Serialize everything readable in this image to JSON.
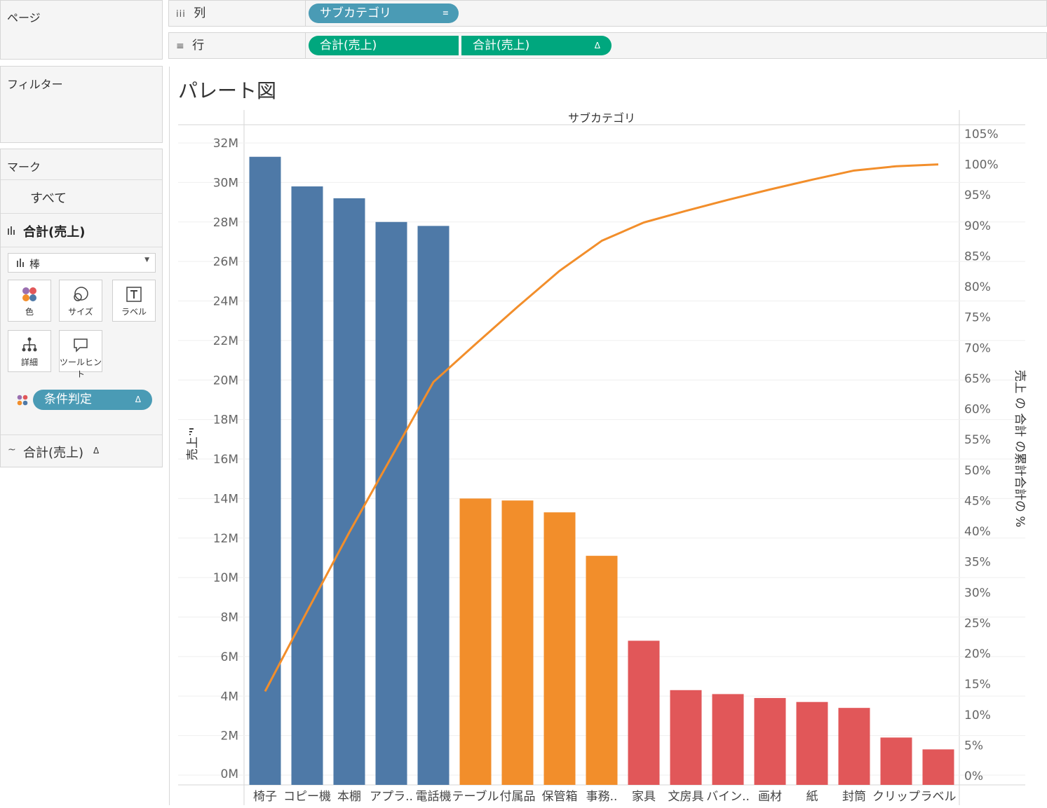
{
  "pages_panel": {
    "title": "ページ"
  },
  "filters_panel": {
    "title": "フィルター"
  },
  "columns_shelf": {
    "label": "列",
    "icon": "columns-icon",
    "pill": "サブカテゴリ"
  },
  "rows_shelf": {
    "label": "行",
    "icon": "rows-icon",
    "pills": [
      "合計(売上)",
      "合計(売上)"
    ],
    "pill2_delta": "Δ"
  },
  "marks_panel": {
    "title": "マーク",
    "all_label": "すべて",
    "measure_label": "合計(売上)",
    "mark_type": "棒",
    "buttons": [
      {
        "label": "色",
        "icon": "color-icon"
      },
      {
        "label": "サイズ",
        "icon": "size-icon"
      },
      {
        "label": "ラベル",
        "icon": "label-icon"
      },
      {
        "label": "詳細",
        "icon": "detail-icon"
      },
      {
        "label": "ツールヒント",
        "icon": "tooltip-icon"
      }
    ],
    "color_pill": "条件判定",
    "color_pill_delta": "Δ",
    "line_measure_label": "合計(売上)",
    "line_measure_delta": "Δ"
  },
  "colors": {
    "blue": "#4e79a7",
    "orange": "#f28e2b",
    "red": "#e15759",
    "line": "#f28e2b",
    "pill_dim": "#4a9bb5",
    "pill_measure": "#00a77e"
  },
  "chart_data": {
    "type": "bar",
    "title": "パレート図",
    "column_header": "サブカテゴリ",
    "categories": [
      "椅子",
      "コピー機",
      "本棚",
      "アプラ..",
      "電話機",
      "テーブル",
      "付属品",
      "保管箱",
      "事務..",
      "家具",
      "文房具",
      "バイン..",
      "画材",
      "紙",
      "封筒",
      "クリップ",
      "ラベル"
    ],
    "values": [
      31.3,
      29.8,
      29.2,
      28.0,
      27.8,
      14.0,
      13.9,
      13.3,
      11.1,
      6.8,
      4.3,
      4.1,
      3.9,
      3.7,
      3.4,
      1.9,
      1.3
    ],
    "bar_groups": [
      "blue",
      "blue",
      "blue",
      "blue",
      "blue",
      "orange",
      "orange",
      "orange",
      "orange",
      "red",
      "red",
      "red",
      "red",
      "red",
      "red",
      "red",
      "red"
    ],
    "ylabel": "売上",
    "y_unit": "M",
    "ylim": [
      0,
      32
    ],
    "y_ticks": [
      "0M",
      "2M",
      "4M",
      "6M",
      "8M",
      "10M",
      "12M",
      "14M",
      "16M",
      "18M",
      "20M",
      "22M",
      "24M",
      "26M",
      "28M",
      "30M",
      "32M"
    ],
    "y2_label": "売上 の 合計 の累計合計の %",
    "y2_lim": [
      0,
      105
    ],
    "y2_ticks": [
      "0%",
      "5%",
      "10%",
      "15%",
      "20%",
      "25%",
      "30%",
      "35%",
      "40%",
      "45%",
      "50%",
      "55%",
      "60%",
      "65%",
      "70%",
      "75%",
      "80%",
      "85%",
      "90%",
      "95%",
      "100%",
      "105%"
    ],
    "cumulative_percent": [
      13.8,
      26.9,
      39.8,
      52.1,
      64.4,
      70.6,
      76.7,
      82.6,
      87.5,
      90.5,
      92.4,
      94.2,
      95.9,
      97.5,
      99.0,
      99.7,
      100.0
    ],
    "series": [
      {
        "name": "合計(売上)",
        "type": "bar",
        "values": [
          31.3,
          29.8,
          29.2,
          28.0,
          27.8,
          14.0,
          13.9,
          13.3,
          11.1,
          6.8,
          4.3,
          4.1,
          3.9,
          3.7,
          3.4,
          1.9,
          1.3
        ]
      },
      {
        "name": "売上 の 合計 の累計合計の %",
        "type": "line",
        "values": [
          13.8,
          26.9,
          39.8,
          52.1,
          64.4,
          70.6,
          76.7,
          82.6,
          87.5,
          90.5,
          92.4,
          94.2,
          95.9,
          97.5,
          99.0,
          99.7,
          100.0
        ]
      }
    ],
    "grid": true
  }
}
